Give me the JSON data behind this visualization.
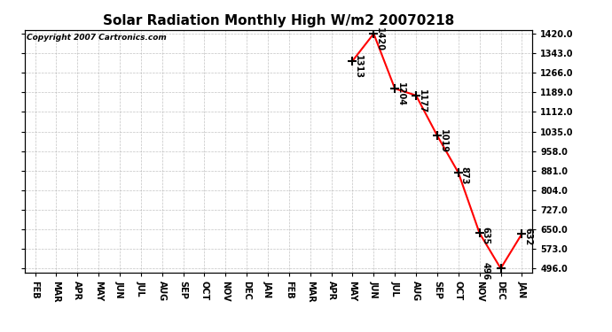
{
  "title": "Solar Radiation Monthly High W/m2 20070218",
  "copyright": "Copyright 2007 Cartronics.com",
  "x_labels": [
    "FEB",
    "MAR",
    "APR",
    "MAY",
    "JUN",
    "JUL",
    "AUG",
    "SEP",
    "OCT",
    "NOV",
    "DEC",
    "JAN",
    "FEB",
    "MAR",
    "APR",
    "MAY",
    "JUN",
    "JUL",
    "AUG",
    "SEP",
    "OCT",
    "NOV",
    "DEC",
    "JAN"
  ],
  "x_indices": [
    15,
    16,
    17,
    18,
    19,
    20,
    21,
    22,
    23
  ],
  "y_values": [
    1313,
    1420,
    1204,
    1177,
    1019,
    873,
    635,
    496,
    632
  ],
  "labels": [
    "1313",
    "1420",
    "1204",
    "1177",
    "1019",
    "873",
    "635",
    "496",
    "632"
  ],
  "line_color": "#FF0000",
  "marker": "+",
  "marker_color": "#000000",
  "marker_size": 7,
  "marker_linewidth": 1.5,
  "ylim_min": 496.0,
  "ylim_max": 1420.0,
  "y_ticks": [
    496.0,
    573.0,
    650.0,
    727.0,
    804.0,
    881.0,
    958.0,
    1035.0,
    1112.0,
    1189.0,
    1266.0,
    1343.0,
    1420.0
  ],
  "background_color": "#ffffff",
  "grid_color": "#aaaaaa",
  "title_fontsize": 11,
  "label_fontsize": 7,
  "tick_fontsize": 7,
  "copyright_fontsize": 6.5,
  "linewidth": 1.5
}
